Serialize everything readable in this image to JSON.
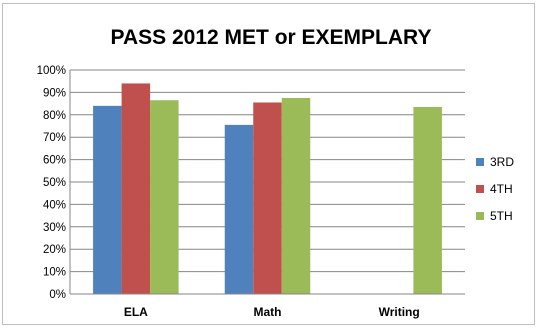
{
  "chart_data": {
    "type": "bar",
    "title": "PASS 2012 MET or EXEMPLARY",
    "categories": [
      "ELA",
      "Math",
      "Writing"
    ],
    "series": [
      {
        "name": "3RD",
        "color": "#4F81BD",
        "values": [
          84,
          75.5,
          null
        ]
      },
      {
        "name": "4TH",
        "color": "#C0504D",
        "values": [
          94,
          85.5,
          null
        ]
      },
      {
        "name": "5TH",
        "color": "#9BBB59",
        "values": [
          86.5,
          87.5,
          83.5
        ]
      }
    ],
    "ylim": [
      0,
      100
    ],
    "yticks": [
      "0%",
      "10%",
      "20%",
      "30%",
      "40%",
      "50%",
      "60%",
      "70%",
      "80%",
      "90%",
      "100%"
    ],
    "grid": true,
    "legend_position": "right"
  }
}
